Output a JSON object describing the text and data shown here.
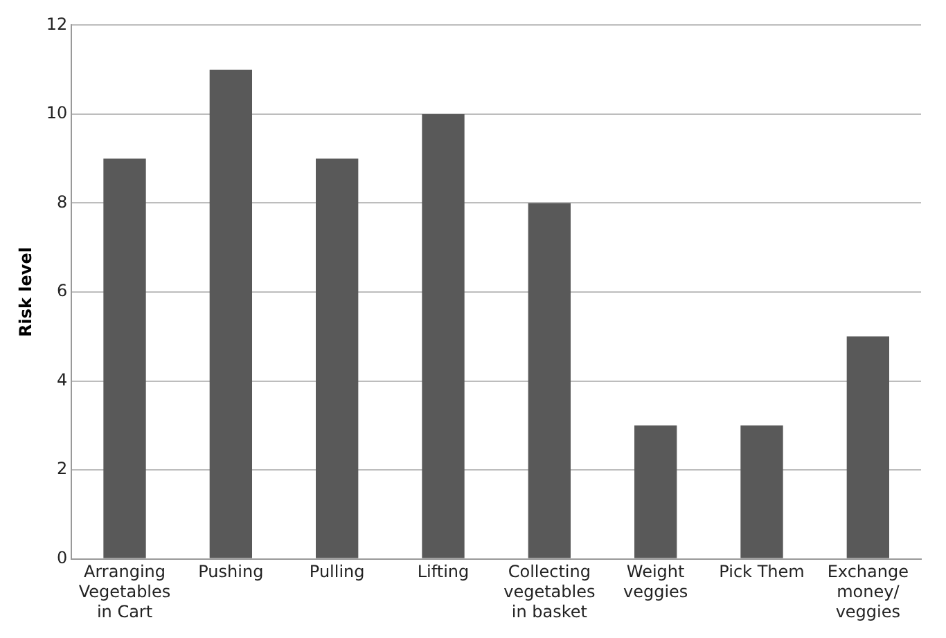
{
  "chart_data": {
    "type": "bar",
    "ylabel": "Risk level",
    "categories": [
      "Arranging\nVegetables\nin Cart",
      "Pushing",
      "Pulling",
      "Lifting",
      "Collecting\nvegetables\nin basket",
      "Weight\nveggies",
      "Pick Them",
      "Exchange\nmoney/\nveggies"
    ],
    "values": [
      9,
      11,
      9,
      10,
      8,
      3,
      3,
      5
    ],
    "color": "#595959",
    "ylim": [
      0,
      12
    ],
    "yticks": [
      0,
      2,
      4,
      6,
      8,
      10,
      12
    ],
    "grid": "y",
    "legend": false
  }
}
